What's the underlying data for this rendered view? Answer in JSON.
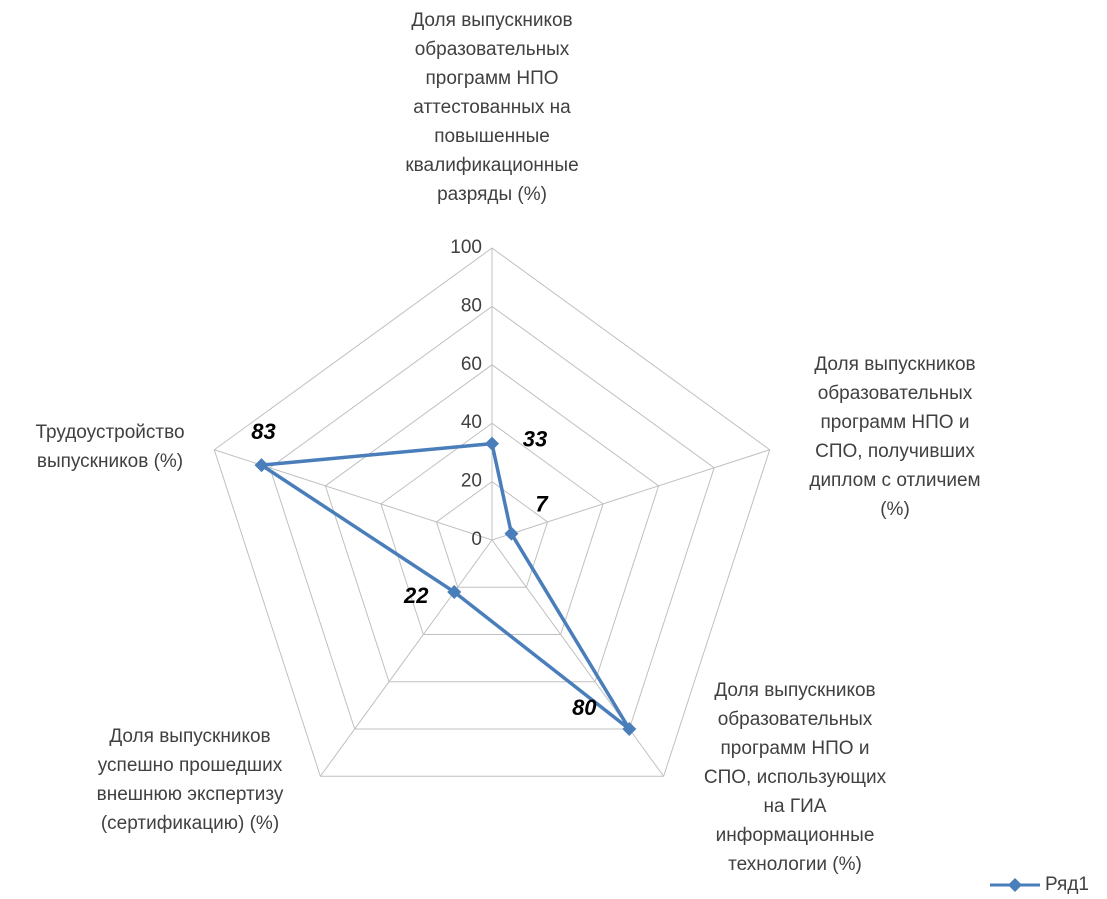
{
  "chart_data": {
    "type": "radar",
    "categories": [
      "Доля выпускников\nобразовательных\nпрограмм НПО\nаттестованных на\nповышенные\nквалификационные\nразряды (%)",
      "Доля выпускников\nобразовательных\nпрограмм НПО и\nСПО, получивших\nдиплом с отличием\n(%)",
      "Доля выпускников\nобразовательных\nпрограмм НПО и\nСПО, использующих\nна ГИА\nинформационные\nтехнологии (%)",
      "Доля выпускников\nуспешно прошедших\nвнешнюю экспертизу\n(сертификацию) (%)",
      "Трудоустройство\nвыпускников (%)"
    ],
    "series": [
      {
        "name": "Ряд1",
        "color": "#4a7ebb",
        "values": [
          33,
          7,
          80,
          22,
          83
        ]
      }
    ],
    "ylim": [
      0,
      100
    ],
    "yticks": [
      0,
      20,
      40,
      60,
      80,
      100
    ],
    "grid": true,
    "legend": "bottom-right"
  }
}
